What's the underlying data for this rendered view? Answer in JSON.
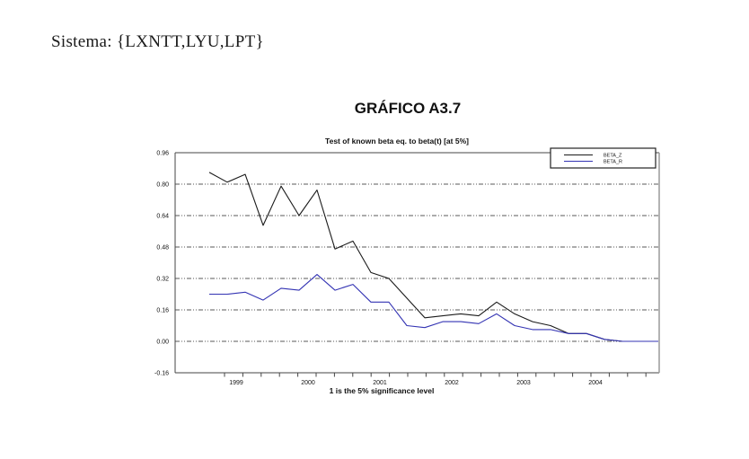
{
  "page": {
    "sistema_line": "Sistema: {LXNTT,LYU,LPT}",
    "grafico_title": "GRÁFICO A3.7"
  },
  "chart": {
    "title": "Test of known beta eq. to beta(t) [at 5%]",
    "x_caption": "1 is the 5% significance level"
  },
  "chart_data": {
    "type": "line",
    "title": "Test of known beta eq. to beta(t) [at 5%]",
    "xlabel": "1 is the 5% significance level",
    "ylabel": "",
    "x_tick_labels": [
      "1999",
      "2000",
      "2001",
      "2002",
      "2003",
      "2004"
    ],
    "x_description": "quarterly observations from mid-1998 through end-2004, 26 points",
    "ylim": [
      -0.16,
      0.96
    ],
    "yticks": [
      0.96,
      0.8,
      0.64,
      0.48,
      0.32,
      0.16,
      0.0,
      -0.16
    ],
    "grid": "horizontal dash-dot lines at 0.00 through 0.80",
    "legend_position": "top-right-inside",
    "series": [
      {
        "name": "BETA_Z",
        "color": "#1a1a1a",
        "values": [
          0.86,
          0.81,
          0.85,
          0.59,
          0.79,
          0.64,
          0.77,
          0.47,
          0.51,
          0.35,
          0.32,
          0.22,
          0.12,
          0.13,
          0.14,
          0.13,
          0.2,
          0.14,
          0.1,
          0.08,
          0.04,
          0.04,
          0.01,
          0.0,
          0.0,
          0.0
        ]
      },
      {
        "name": "BETA_R",
        "color": "#3333b3",
        "values": [
          0.24,
          0.24,
          0.25,
          0.21,
          0.27,
          0.26,
          0.34,
          0.26,
          0.29,
          0.2,
          0.2,
          0.08,
          0.07,
          0.1,
          0.1,
          0.09,
          0.14,
          0.08,
          0.06,
          0.06,
          0.04,
          0.04,
          0.01,
          0.0,
          0.0,
          0.0
        ]
      }
    ]
  }
}
